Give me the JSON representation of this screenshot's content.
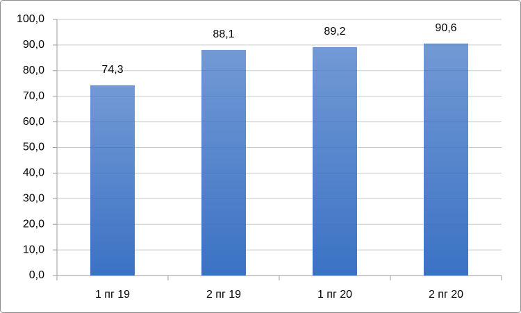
{
  "chart_data": {
    "type": "bar",
    "categories": [
      "1 пг 19",
      "2 пг 19",
      "1 пг 20",
      "2 пг 20"
    ],
    "values": [
      74.3,
      88.1,
      89.2,
      90.6
    ],
    "value_labels": [
      "74,3",
      "88,1",
      "89,2",
      "90,6"
    ],
    "color": "#3b72c4",
    "ylim": [
      0,
      100
    ],
    "yticks": [
      {
        "value": 0,
        "label": "0,0"
      },
      {
        "value": 10,
        "label": "10,0"
      },
      {
        "value": 20,
        "label": "20,0"
      },
      {
        "value": 30,
        "label": "30,0"
      },
      {
        "value": 40,
        "label": "40,0"
      },
      {
        "value": 50,
        "label": "50,0"
      },
      {
        "value": 60,
        "label": "60,0"
      },
      {
        "value": 70,
        "label": "70,0"
      },
      {
        "value": 80,
        "label": "80,0"
      },
      {
        "value": 90,
        "label": "90,0"
      },
      {
        "value": 100,
        "label": "100,0"
      }
    ],
    "grid": true
  }
}
